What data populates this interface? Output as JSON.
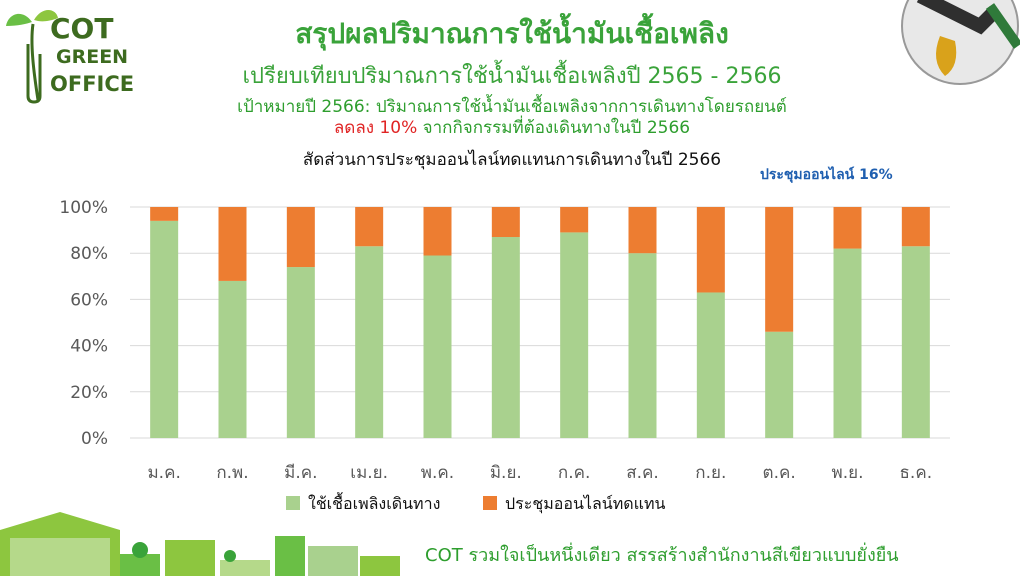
{
  "header": {
    "title": "สรุปผลปริมาณการใช้น้ำมันเชื้อเพลิง",
    "subtitle": "เปรียบเทียบปริมาณการใช้น้ำมันเชื้อเพลิงปี 2565 - 2566",
    "target_line1": "เป้าหมายปี 2566: ปริมาณการใช้น้ำมันเชื้อเพลิงจากการเดินทางโดยรถยนต์",
    "target_line2_red": "ลดลง 10%",
    "target_line2_rest": " จากกิจกรรมที่ต้องเดินทางในปี 2566"
  },
  "logo": {
    "line1": "COT",
    "line2": "GREEN",
    "line3": "OFFICE"
  },
  "footer": {
    "slogan": "COT รวมใจเป็นหนึ่งเดียว สรรสร้างสำนักงานสีเขียวแบบยั่งยืน"
  },
  "colors": {
    "fuel": "#a9d18e",
    "online": "#ed7d31",
    "grid": "#d9d9d9",
    "axis_text": "#595959"
  },
  "chart_data": {
    "type": "bar",
    "stacked": true,
    "title": "สัดส่วนการประชุมออนไลน์ทดแทนการเดินทางในปี 2566",
    "annotation": "ประชุมออนไลน์ 16%",
    "categories": [
      "ม.ค.",
      "ก.พ.",
      "มี.ค.",
      "เม.ย.",
      "พ.ค.",
      "มิ.ย.",
      "ก.ค.",
      "ส.ค.",
      "ก.ย.",
      "ต.ค.",
      "พ.ย.",
      "ธ.ค."
    ],
    "series": [
      {
        "name": "ใช้เชื้อเพลิงเดินทาง",
        "values": [
          94,
          68,
          74,
          83,
          79,
          87,
          89,
          80,
          63,
          46,
          82,
          83
        ]
      },
      {
        "name": "ประชุมออนไลน์ทดแทน",
        "values": [
          6,
          32,
          26,
          17,
          21,
          13,
          11,
          20,
          37,
          54,
          18,
          17
        ]
      }
    ],
    "ylim": [
      0,
      100
    ],
    "yticks": [
      "0%",
      "20%",
      "40%",
      "60%",
      "80%",
      "100%"
    ],
    "grid": true,
    "legend": "bottom"
  }
}
